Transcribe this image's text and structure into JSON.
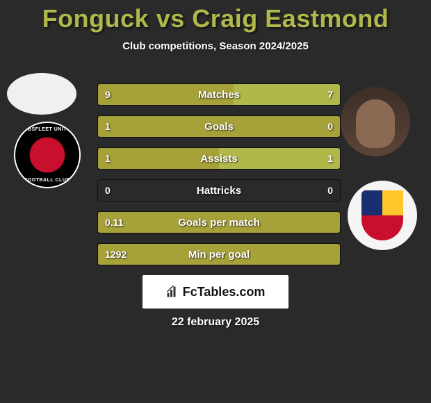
{
  "title_player1": "Fonguck",
  "title_vs": "vs",
  "title_player2": "Craig Eastmond",
  "title_color": "#b0b84a",
  "subtitle": "Club competitions, Season 2024/2025",
  "background_color": "#2a2a2a",
  "bar_left_color": "#a7a13a",
  "bar_right_color": "#b0b84a",
  "brand_name": "FcTables.com",
  "date": "22 february 2025",
  "stats": [
    {
      "label": "Matches",
      "left_val": "9",
      "right_val": "7",
      "left_pct": 56,
      "right_pct": 44
    },
    {
      "label": "Goals",
      "left_val": "1",
      "right_val": "0",
      "left_pct": 100,
      "right_pct": 0
    },
    {
      "label": "Assists",
      "left_val": "1",
      "right_val": "1",
      "left_pct": 50,
      "right_pct": 50
    },
    {
      "label": "Hattricks",
      "left_val": "0",
      "right_val": "0",
      "left_pct": 0,
      "right_pct": 0
    },
    {
      "label": "Goals per match",
      "left_val": "0.11",
      "right_val": "",
      "left_pct": 100,
      "right_pct": 0
    },
    {
      "label": "Min per goal",
      "left_val": "1292",
      "right_val": "",
      "left_pct": 100,
      "right_pct": 0
    }
  ],
  "crest_left_text_top": "EBBSFLEET UNITED",
  "crest_left_text_bottom": "FOOTBALL CLUB"
}
